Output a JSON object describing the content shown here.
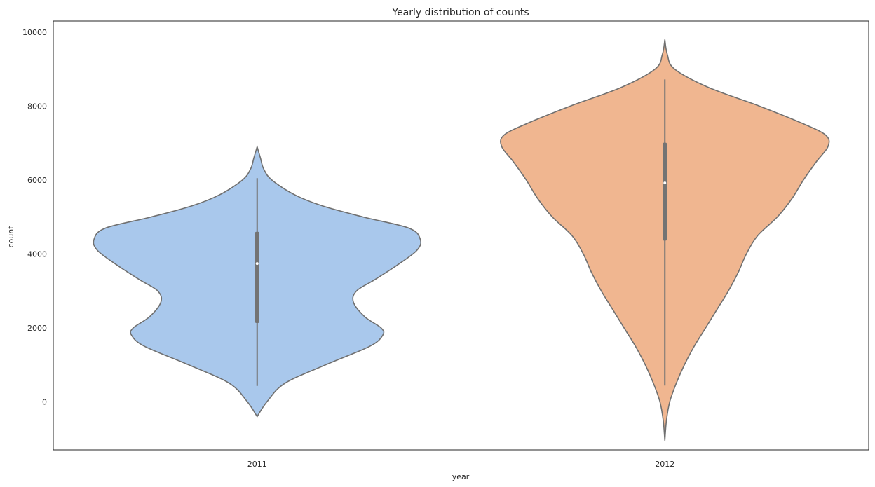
{
  "chart_data": {
    "type": "violin",
    "title": "Yearly distribution of counts",
    "xlabel": "year",
    "ylabel": "count",
    "categories": [
      "2011",
      "2012"
    ],
    "ylim": [
      -1300,
      10300
    ],
    "yticks": [
      0,
      2000,
      4000,
      6000,
      8000,
      10000
    ],
    "ytick_labels": [
      "0",
      "2000",
      "4000",
      "6000",
      "8000",
      "10000"
    ],
    "grid": false,
    "violins": [
      {
        "category": "2011",
        "color": "#a9c8ec",
        "kde_range": [
          -400,
          6900
        ],
        "median": 3740,
        "q1": 2130,
        "q3": 4600,
        "whisker_low": 430,
        "whisker_high": 6050,
        "profile": [
          [
            -400,
            0.0
          ],
          [
            0,
            0.06
          ],
          [
            500,
            0.17
          ],
          [
            1000,
            0.42
          ],
          [
            1500,
            0.69
          ],
          [
            1800,
            0.77
          ],
          [
            2000,
            0.76
          ],
          [
            2300,
            0.66
          ],
          [
            2700,
            0.59
          ],
          [
            3000,
            0.61
          ],
          [
            3300,
            0.72
          ],
          [
            3700,
            0.86
          ],
          [
            4100,
            0.98
          ],
          [
            4400,
            1.0
          ],
          [
            4700,
            0.93
          ],
          [
            5000,
            0.65
          ],
          [
            5300,
            0.4
          ],
          [
            5600,
            0.23
          ],
          [
            6000,
            0.09
          ],
          [
            6300,
            0.04
          ],
          [
            6600,
            0.02
          ],
          [
            6900,
            0.0
          ]
        ]
      },
      {
        "category": "2012",
        "color": "#f0b690",
        "kde_range": [
          -1050,
          9800
        ],
        "median": 5920,
        "q1": 4360,
        "q3": 7010,
        "whisker_low": 440,
        "whisker_high": 8720,
        "profile": [
          [
            -1050,
            0.0
          ],
          [
            -500,
            0.01
          ],
          [
            0,
            0.03
          ],
          [
            500,
            0.07
          ],
          [
            1000,
            0.12
          ],
          [
            1500,
            0.18
          ],
          [
            2000,
            0.25
          ],
          [
            2500,
            0.32
          ],
          [
            3000,
            0.39
          ],
          [
            3500,
            0.45
          ],
          [
            4000,
            0.5
          ],
          [
            4500,
            0.57
          ],
          [
            5000,
            0.69
          ],
          [
            5500,
            0.78
          ],
          [
            6000,
            0.85
          ],
          [
            6500,
            0.93
          ],
          [
            6900,
            1.0
          ],
          [
            7200,
            0.99
          ],
          [
            7500,
            0.86
          ],
          [
            8000,
            0.58
          ],
          [
            8500,
            0.27
          ],
          [
            9000,
            0.06
          ],
          [
            9400,
            0.015
          ],
          [
            9800,
            0.0
          ]
        ]
      }
    ],
    "line_color": "#707070",
    "box_color": "#737373"
  }
}
